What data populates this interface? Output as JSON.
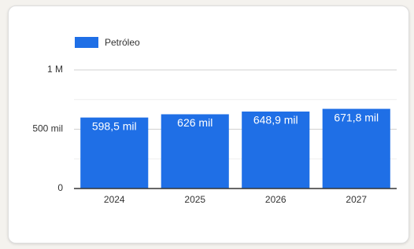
{
  "chart_data": {
    "type": "bar",
    "series": [
      {
        "name": "Petróleo",
        "color": "#1f6fe6",
        "values": [
          598500,
          626000,
          648900,
          671800
        ],
        "value_labels": [
          "598,5 mil",
          "626 mil",
          "648,9 mil",
          "671,8 mil"
        ]
      }
    ],
    "categories": [
      "2024",
      "2025",
      "2026",
      "2027"
    ],
    "ylim": [
      0,
      1000000
    ],
    "yticks": [
      0,
      {
        "value": 500000,
        "label": "500 mil"
      },
      {
        "value": 1000000,
        "label": "1 M"
      }
    ],
    "minor_yticks": [
      250000,
      750000
    ],
    "grid": true,
    "legend": "top-left"
  }
}
